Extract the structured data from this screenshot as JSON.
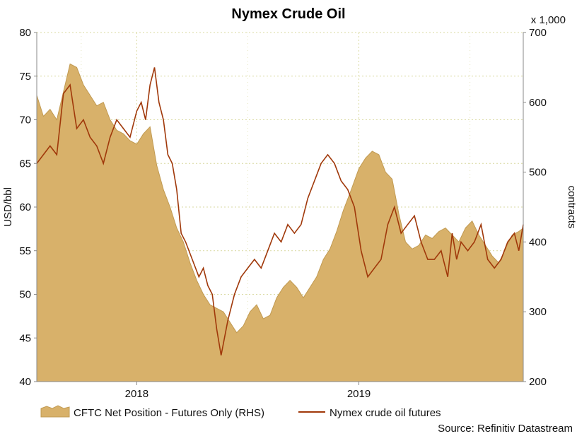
{
  "chart_data": {
    "type": "line",
    "title": "Nymex Crude Oil",
    "left_axis": {
      "label": "USD/bbl",
      "ylim": [
        40,
        80
      ],
      "ticks": [
        "80",
        "75",
        "70",
        "65",
        "60",
        "55",
        "50",
        "45",
        "40"
      ]
    },
    "right_axis": {
      "label": "contracts",
      "unit_note": "x 1,000",
      "ylim": [
        200,
        700
      ],
      "ticks": [
        "700",
        "600",
        "500",
        "400",
        "300",
        "200"
      ]
    },
    "x_ticks": [
      "2018",
      "2019"
    ],
    "grid": true,
    "legend_position": "bottom",
    "source": "Source: Refinitiv Datastream",
    "colors": {
      "area": "#d8b16a",
      "area_edge": "#c19a52",
      "line": "#a0380a",
      "grid": "#d9d9a0"
    },
    "series": [
      {
        "name": "CFTC Net Position - Futures Only (RHS)",
        "type": "area",
        "axis": "right",
        "x": [
          2017.55,
          2017.58,
          2017.61,
          2017.64,
          2017.67,
          2017.7,
          2017.73,
          2017.76,
          2017.79,
          2017.82,
          2017.85,
          2017.88,
          2017.91,
          2017.94,
          2017.97,
          2018.0,
          2018.03,
          2018.06,
          2018.09,
          2018.12,
          2018.15,
          2018.18,
          2018.21,
          2018.24,
          2018.27,
          2018.3,
          2018.33,
          2018.36,
          2018.39,
          2018.42,
          2018.45,
          2018.48,
          2018.51,
          2018.54,
          2018.57,
          2018.6,
          2018.63,
          2018.66,
          2018.69,
          2018.72,
          2018.75,
          2018.78,
          2018.81,
          2018.84,
          2018.87,
          2018.9,
          2018.93,
          2018.96,
          2019.0,
          2019.03,
          2019.06,
          2019.09,
          2019.12,
          2019.15,
          2019.18,
          2019.21,
          2019.24,
          2019.27,
          2019.3,
          2019.33,
          2019.36,
          2019.39,
          2019.42,
          2019.45,
          2019.48,
          2019.51,
          2019.54,
          2019.57,
          2019.6,
          2019.63,
          2019.66,
          2019.69,
          2019.72,
          2019.74
        ],
        "values": [
          610,
          580,
          590,
          575,
          615,
          655,
          650,
          625,
          610,
          595,
          600,
          575,
          560,
          555,
          545,
          540,
          555,
          565,
          510,
          475,
          450,
          420,
          400,
          370,
          345,
          325,
          310,
          305,
          300,
          285,
          270,
          280,
          300,
          310,
          290,
          295,
          320,
          335,
          345,
          335,
          320,
          335,
          350,
          375,
          390,
          415,
          445,
          470,
          505,
          520,
          530,
          525,
          500,
          490,
          440,
          400,
          390,
          395,
          410,
          405,
          415,
          420,
          410,
          400,
          420,
          430,
          410,
          395,
          380,
          370,
          390,
          410,
          415,
          420
        ]
      },
      {
        "name": "Nymex crude oil futures",
        "type": "line",
        "axis": "left",
        "x": [
          2017.55,
          2017.58,
          2017.61,
          2017.64,
          2017.67,
          2017.7,
          2017.73,
          2017.76,
          2017.79,
          2017.82,
          2017.85,
          2017.88,
          2017.91,
          2017.94,
          2017.97,
          2018.0,
          2018.02,
          2018.04,
          2018.06,
          2018.08,
          2018.1,
          2018.12,
          2018.14,
          2018.16,
          2018.18,
          2018.2,
          2018.22,
          2018.25,
          2018.28,
          2018.3,
          2018.32,
          2018.34,
          2018.36,
          2018.38,
          2018.41,
          2018.44,
          2018.47,
          2018.5,
          2018.53,
          2018.56,
          2018.59,
          2018.62,
          2018.65,
          2018.68,
          2018.71,
          2018.74,
          2018.77,
          2018.8,
          2018.83,
          2018.86,
          2018.89,
          2018.92,
          2018.95,
          2018.98,
          2019.01,
          2019.04,
          2019.07,
          2019.1,
          2019.13,
          2019.16,
          2019.19,
          2019.22,
          2019.25,
          2019.28,
          2019.31,
          2019.34,
          2019.37,
          2019.4,
          2019.42,
          2019.44,
          2019.46,
          2019.49,
          2019.52,
          2019.55,
          2019.58,
          2019.61,
          2019.64,
          2019.67,
          2019.7,
          2019.72,
          2019.74
        ],
        "values": [
          65,
          66,
          67,
          66,
          73,
          74,
          69,
          70,
          68,
          67,
          65,
          68,
          70,
          69,
          68,
          71,
          72,
          70,
          74,
          76,
          72,
          70,
          66,
          65,
          62,
          57,
          56,
          54,
          52,
          53,
          51,
          50,
          46,
          43,
          47,
          50,
          52,
          53,
          54,
          53,
          55,
          57,
          56,
          58,
          57,
          58,
          61,
          63,
          65,
          66,
          65,
          63,
          62,
          60,
          55,
          52,
          53,
          54,
          58,
          60,
          57,
          58,
          59,
          56,
          54,
          54,
          55,
          52,
          57,
          54,
          56,
          55,
          56,
          58,
          54,
          53,
          54,
          56,
          57,
          55,
          58
        ]
      }
    ]
  }
}
